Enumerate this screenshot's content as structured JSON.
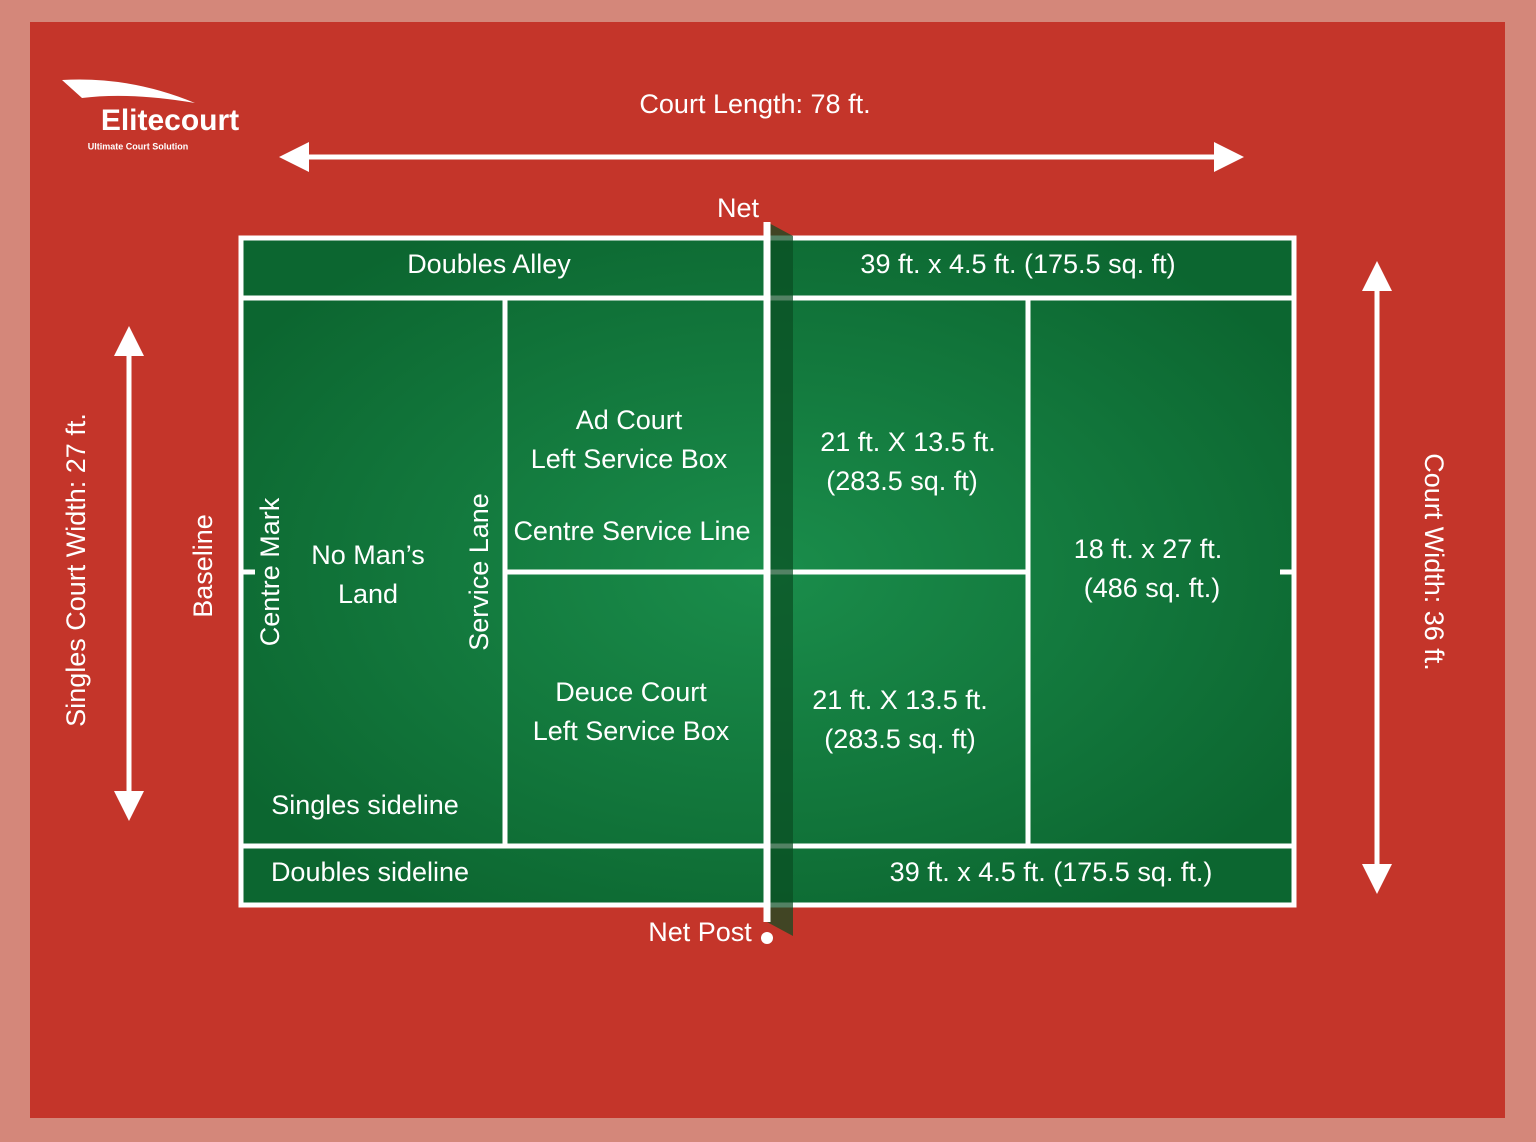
{
  "logo": {
    "name": "Elitecourt",
    "tagline": "Ultimate Court Solution"
  },
  "dimensions": {
    "court_length": "Court Length: 78 ft.",
    "singles_width": "Singles Court Width: 27 ft.",
    "court_width": "Court Width: 36 ft."
  },
  "labels": {
    "net": "Net",
    "net_post": "Net Post",
    "doubles_alley": "Doubles Alley",
    "doubles_sideline": "Doubles sideline",
    "baseline": "Baseline",
    "centre_mark": "Centre Mark",
    "no_mans_land": [
      "No Man’s",
      "Land"
    ],
    "service_lane": "Service Lane",
    "singles_sideline": "Singles sideline",
    "ad_court": [
      "Ad Court",
      "Left Service Box"
    ],
    "centre_service_line": "Centre Service Line",
    "deuce_court": [
      "Deuce Court",
      "Left Service Box"
    ]
  },
  "areas": {
    "alley_top": "39 ft. x 4.5 ft. (175.5 sq. ft)",
    "service_box_top": [
      "21 ft. X 13.5 ft.",
      "(283.5 sq. ft)"
    ],
    "service_box_bottom": [
      "21 ft. X 13.5 ft.",
      "(283.5 sq. ft)"
    ],
    "backcourt": [
      "18 ft. x 27 ft.",
      "(486 sq. ft.)"
    ],
    "alley_bottom": "39 ft. x 4.5 ft. (175.5 sq. ft.)"
  }
}
